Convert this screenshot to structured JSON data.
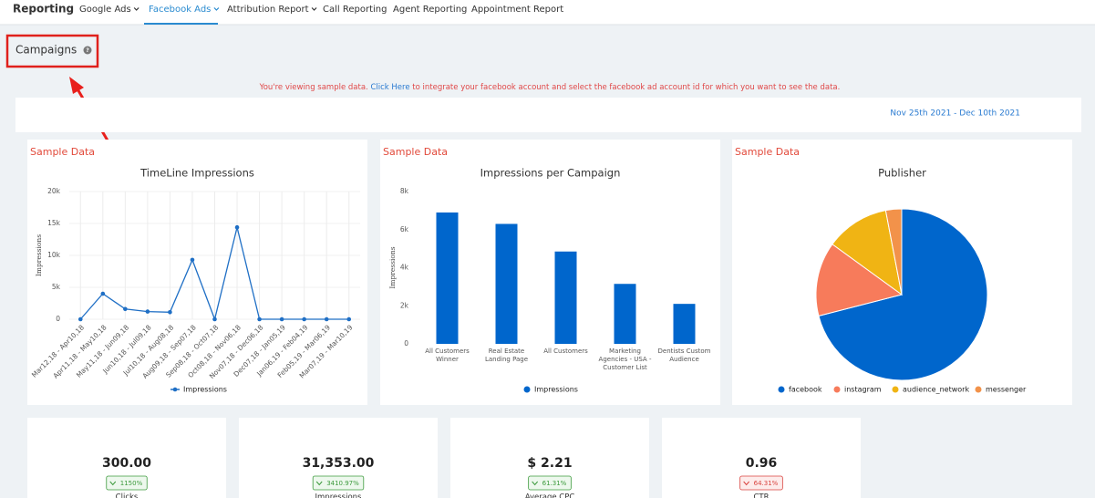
{
  "nav": {
    "brand": "Reporting",
    "items": [
      "Google Ads",
      "Facebook Ads",
      "Attribution Report",
      "Call Reporting",
      "Agent Reporting",
      "Appointment Report"
    ],
    "active_index": 1
  },
  "header": {
    "title": "Campaigns"
  },
  "notice": {
    "text_before": "You're viewing sample data.",
    "link": "Click Here",
    "text_after": "to integrate your facebook account and select the facebook ad account id for which you want to see the data."
  },
  "date_range": "Nov 25th 2021 - Dec 10th 2021",
  "chart_data": [
    {
      "type": "line",
      "annotation": "Sample Data",
      "title": "TimeLine Impressions",
      "y_label": "Impressions",
      "categories": [
        "Mar12,18 - Apr10,18",
        "Apr11,18 - May10,18",
        "May11,18 - Jun09,18",
        "Jun10,18 - Jul09,18",
        "Jul10,18 - Aug08,18",
        "Aug09,18 - Sep07,18",
        "Sep08,18 - Oct07,18",
        "Oct08,18 - Nov06,18",
        "Nov07,18 - Dec06,18",
        "Dec07,18 - Jan05,19",
        "Jan06,19 - Feb04,19",
        "Feb05,19 - Mar06,19",
        "Mar07,19 - Mar10,19"
      ],
      "series": [
        {
          "name": "Impressions",
          "color": "#1f6fc5",
          "values": [
            0,
            4000,
            1600,
            1200,
            1100,
            9300,
            0,
            14400,
            0,
            0,
            0,
            0,
            0
          ]
        }
      ],
      "ylim": [
        0,
        20000
      ],
      "yticks": [
        0,
        {
          "value": 5000,
          "label": "5k"
        },
        {
          "value": 10000,
          "label": "10k"
        },
        {
          "value": 15000,
          "label": "15k"
        },
        {
          "value": 20000,
          "label": "20k"
        }
      ],
      "grid": true
    },
    {
      "type": "bar",
      "annotation": "Sample Data",
      "title": "Impressions per Campaign",
      "y_label": "Impressions",
      "categories": [
        "All Customers Winner",
        "Real Estate Landing Page",
        "All Customers",
        "Marketing Agencies - USA - Customer List",
        "Dentists Custom Audience"
      ],
      "series": [
        {
          "name": "Impressions",
          "color": "#0066cc",
          "values": [
            6900,
            6300,
            4850,
            3150,
            2100
          ]
        }
      ],
      "ylim": [
        0,
        8000
      ],
      "yticks": [
        0,
        {
          "value": 2000,
          "label": "2k"
        },
        {
          "value": 4000,
          "label": "4k"
        },
        {
          "value": 6000,
          "label": "6k"
        },
        {
          "value": 8000,
          "label": "8k"
        }
      ]
    },
    {
      "type": "pie",
      "annotation": "Sample Data",
      "title": "Publisher",
      "categories": [
        "facebook",
        "instagram",
        "audience_network",
        "messenger"
      ],
      "values": [
        71,
        14,
        12,
        3
      ],
      "colors": [
        "#0066cc",
        "#f77b5b",
        "#f0b414",
        "#f2924a"
      ]
    }
  ],
  "kpis": [
    {
      "value": "300.00",
      "change": "1150%",
      "label": "Clicks",
      "color": "#3c9a3c"
    },
    {
      "value": "31,353.00",
      "change": "3410.97%",
      "label": "Impressions",
      "color": "#3c9a3c"
    },
    {
      "value": "$ 2.21",
      "change": "61.31%",
      "label": "Average CPC",
      "color": "#3c9a3c"
    },
    {
      "value": "0.96",
      "change": "64.31%",
      "label": "CTR",
      "color": "#d9433f"
    }
  ]
}
